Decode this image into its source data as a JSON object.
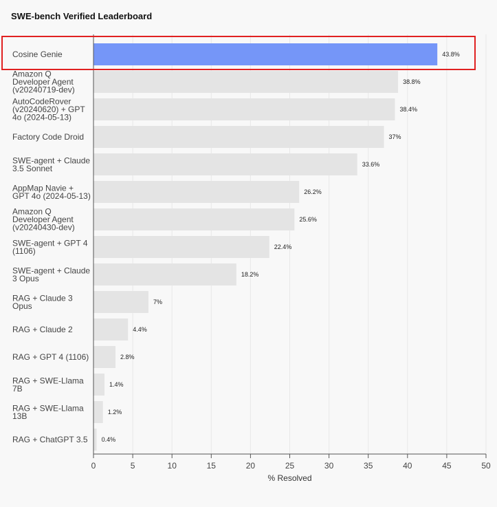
{
  "chart_data": {
    "type": "bar",
    "orientation": "horizontal",
    "title": "SWE-bench Verified Leaderboard",
    "xlabel": "% Resolved",
    "ylabel": "",
    "xlim": [
      0,
      50
    ],
    "xticks": [
      0,
      5,
      10,
      15,
      20,
      25,
      30,
      35,
      40,
      45,
      50
    ],
    "grid": true,
    "categories": [
      [
        "Cosine Genie"
      ],
      [
        "Amazon Q",
        "Developer Agent",
        "(v20240719-dev)"
      ],
      [
        "AutoCodeRover",
        "(v20240620) + GPT",
        "4o (2024-05-13)"
      ],
      [
        "Factory Code Droid"
      ],
      [
        "SWE-agent + Claude",
        "3.5 Sonnet"
      ],
      [
        "AppMap Navie +",
        "GPT 4o (2024-05-13)"
      ],
      [
        "Amazon Q",
        "Developer Agent",
        "(v20240430-dev)"
      ],
      [
        "SWE-agent + GPT 4",
        "(1106)"
      ],
      [
        "SWE-agent + Claude",
        "3 Opus"
      ],
      [
        "RAG + Claude 3",
        "Opus"
      ],
      [
        "RAG + Claude 2"
      ],
      [
        "RAG + GPT 4 (1106)"
      ],
      [
        "RAG + SWE-Llama",
        "7B"
      ],
      [
        "RAG + SWE-Llama",
        "13B"
      ],
      [
        "RAG + ChatGPT 3.5"
      ]
    ],
    "values": [
      43.8,
      38.8,
      38.4,
      37,
      33.6,
      26.2,
      25.6,
      22.4,
      18.2,
      7,
      4.4,
      2.8,
      1.4,
      1.2,
      0.4
    ],
    "value_labels": [
      "43.8%",
      "38.8%",
      "38.4%",
      "37%",
      "33.6%",
      "26.2%",
      "25.6%",
      "22.4%",
      "18.2%",
      "7%",
      "4.4%",
      "2.8%",
      "1.4%",
      "1.2%",
      "0.4%"
    ],
    "highlight_index": 0,
    "colors": {
      "highlight_bar": "#7596f8",
      "bar": "#e4e4e4",
      "highlight_box": "#e02020",
      "grid": "#e8e8e8",
      "axis": "#555555"
    }
  }
}
